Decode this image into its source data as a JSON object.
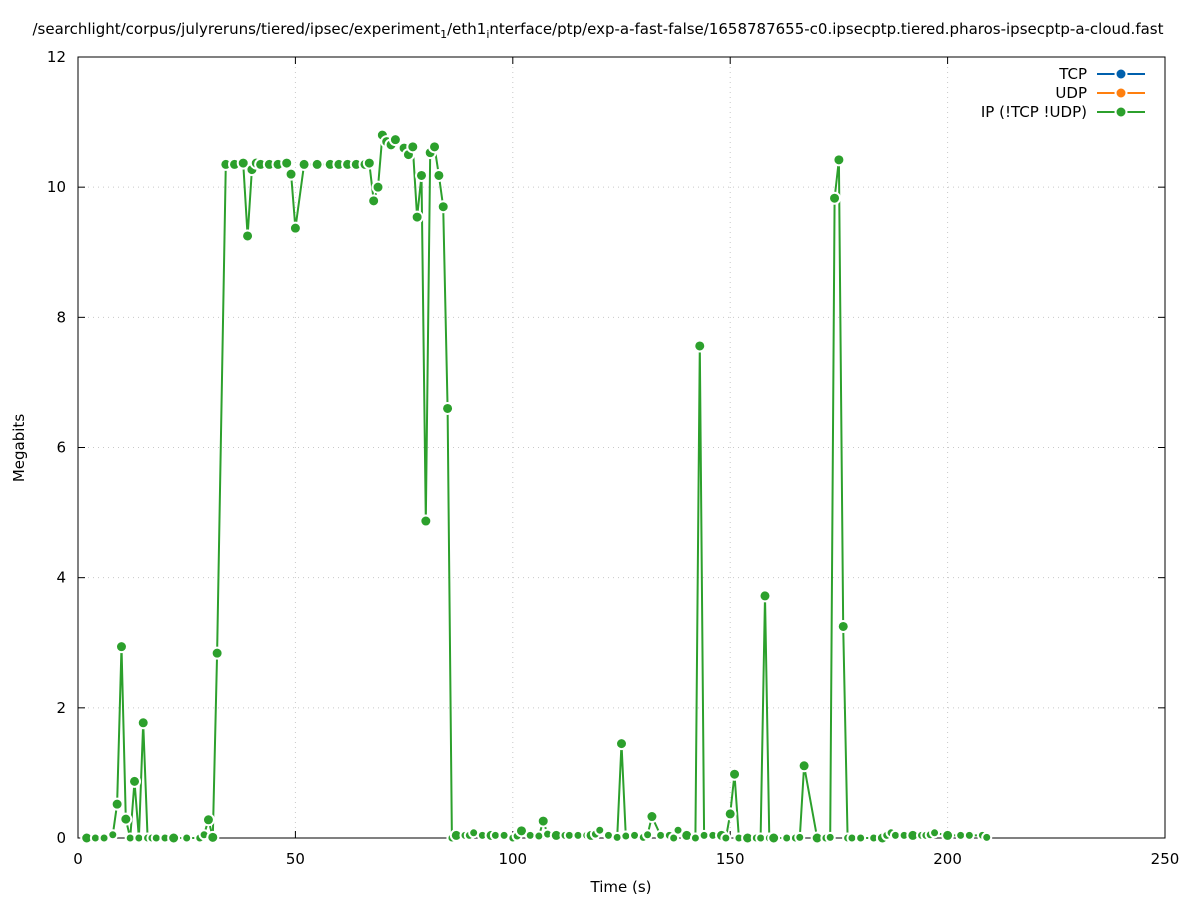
{
  "chart_data": {
    "type": "line",
    "title": "/searchlight/corpus/julyreruns/tiered/ipsec/experiment_1/eth1_interface/ptp/exp-a-fast-false/1658787655-c0.ipsecptp.tiered.pharos-ipsecptp-a-cloud.fast",
    "title_parts": [
      {
        "text": "/searchlight/corpus/julyreruns/tiered/ipsec/experiment",
        "sub": false
      },
      {
        "text": "1",
        "sub": true
      },
      {
        "text": "/eth1",
        "sub": false
      },
      {
        "text": "i",
        "sub": true
      },
      {
        "text": "nterface/ptp/exp-a-fast-false/1658787655-c0.ipsecptp.tiered.pharos-ipsecptp-a-cloud.fast",
        "sub": false
      }
    ],
    "xlabel": "Time (s)",
    "ylabel": "Megabits",
    "xlim": [
      0,
      250
    ],
    "ylim": [
      0,
      12
    ],
    "xticks": [
      0,
      50,
      100,
      150,
      200,
      250
    ],
    "yticks": [
      0,
      2,
      4,
      6,
      8,
      10,
      12
    ],
    "grid": true,
    "legend_position": "top-right",
    "series": [
      {
        "name": "TCP",
        "color": "#0060ad",
        "x": [],
        "y": []
      },
      {
        "name": "UDP",
        "color": "#ff7f0e",
        "x": [],
        "y": []
      },
      {
        "name": "IP (!TCP  !UDP)",
        "color": "#2ca02c",
        "x": [
          2,
          4,
          6,
          8,
          9,
          10,
          11,
          12,
          13,
          14,
          15,
          16,
          17,
          18,
          20,
          22,
          25,
          28,
          29,
          30,
          31,
          32,
          34,
          36,
          38,
          39,
          40,
          41,
          42,
          44,
          46,
          48,
          49,
          50,
          52,
          55,
          58,
          60,
          62,
          64,
          66,
          67,
          68,
          69,
          70,
          71,
          72,
          73,
          75,
          76,
          77,
          78,
          79,
          80,
          81,
          82,
          83,
          84,
          85,
          86,
          87,
          89,
          90,
          91,
          93,
          95,
          96,
          98,
          100,
          101,
          102,
          104,
          106,
          107,
          108,
          110,
          112,
          113,
          115,
          117,
          118,
          119,
          120,
          122,
          124,
          125,
          126,
          128,
          130,
          131,
          132,
          134,
          136,
          137,
          138,
          140,
          142,
          143,
          144,
          146,
          148,
          149,
          150,
          151,
          152,
          154,
          156,
          157,
          158,
          159,
          160,
          163,
          165,
          166,
          167,
          170,
          172,
          173,
          174,
          175,
          176,
          177,
          178,
          180,
          183,
          185,
          186,
          187,
          188,
          190,
          192,
          194,
          195,
          196,
          197,
          200,
          203,
          205,
          208,
          209
        ],
        "y": [
          0,
          0,
          0,
          0.05,
          0.52,
          2.94,
          0.29,
          0,
          0.87,
          0,
          1.77,
          0,
          0,
          0,
          0,
          0,
          0,
          0,
          0.05,
          0.28,
          0.01,
          2.84,
          10.35,
          10.35,
          10.37,
          9.25,
          10.27,
          10.37,
          10.35,
          10.35,
          10.35,
          10.37,
          10.2,
          9.37,
          10.35,
          10.35,
          10.35,
          10.35,
          10.35,
          10.35,
          10.35,
          10.37,
          9.79,
          10,
          10.8,
          10.7,
          10.65,
          10.73,
          10.6,
          10.5,
          10.62,
          9.54,
          10.18,
          4.87,
          10.53,
          10.62,
          10.18,
          9.7,
          6.6,
          0,
          0.04,
          0.04,
          0.04,
          0.08,
          0.04,
          0.04,
          0.04,
          0.04,
          0,
          0.03,
          0.11,
          0.04,
          0.03,
          0.26,
          0.06,
          0.04,
          0.04,
          0.04,
          0.04,
          0.04,
          0.04,
          0.06,
          0.12,
          0.04,
          0.01,
          1.45,
          0.03,
          0.04,
          0.01,
          0.05,
          0.33,
          0.04,
          0.04,
          0,
          0.12,
          0.04,
          0,
          7.56,
          0.04,
          0.04,
          0.04,
          0,
          0.37,
          0.98,
          0,
          0,
          0,
          0,
          3.72,
          0,
          0,
          0,
          0,
          0.01,
          1.11,
          0,
          0,
          0.01,
          9.83,
          10.42,
          3.25,
          0,
          0,
          0,
          0,
          0,
          0.04,
          0.08,
          0.04,
          0.04,
          0.04,
          0.04,
          0.04,
          0.05,
          0.08,
          0.04,
          0.04,
          0.04,
          0.04,
          0.01
        ]
      }
    ]
  }
}
